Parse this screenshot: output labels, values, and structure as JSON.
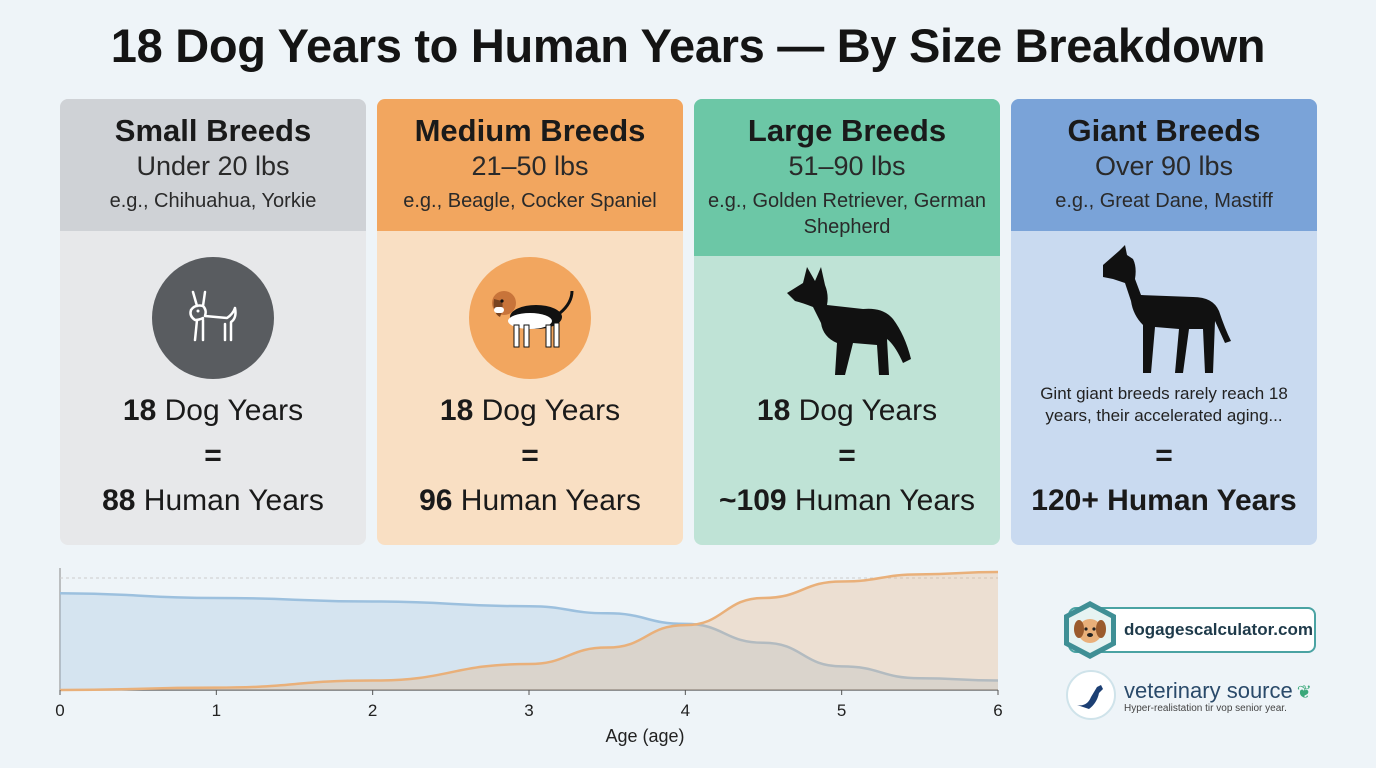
{
  "title": "18 Dog Years to Human Years — By Size Breakdown",
  "cards": [
    {
      "name": "Small Breeds",
      "weight": "Under 20 lbs",
      "examples": "e.g., Chihuahua, Yorkie",
      "dog_years_num": "18",
      "dog_years_label": " Dog Years",
      "equals": "=",
      "human_years_num": "88",
      "human_years_label": " Human Years",
      "icon": "chihuahua-outline-icon"
    },
    {
      "name": "Medium Breeds",
      "weight": "21–50 lbs",
      "examples": "e.g., Beagle, Cocker Spaniel",
      "dog_years_num": "18",
      "dog_years_label": " Dog Years",
      "equals": "=",
      "human_years_num": "96",
      "human_years_label": " Human Years",
      "icon": "beagle-icon"
    },
    {
      "name": "Large Breeds",
      "weight": "51–90 lbs",
      "examples": "e.g., Golden Retriever, German Shepherd",
      "dog_years_num": "18",
      "dog_years_label": " Dog Years",
      "equals": "=",
      "human_years_num": "~109",
      "human_years_label": " Human Years",
      "icon": "german-shepherd-silhouette-icon"
    },
    {
      "name": "Giant Breeds",
      "weight": "Over 90 lbs",
      "examples": "e.g., Great Dane, Mastiff",
      "note": "Gint giant breeds rarely reach 18 years, their accelerated aging...",
      "equals": "=",
      "human_years_text": "120+ Human Years",
      "icon": "great-dane-silhouette-icon"
    }
  ],
  "chart_data": {
    "type": "area",
    "xlabel": "Age (age)",
    "ylabel": "",
    "x": [
      0,
      1,
      2,
      3,
      4,
      5,
      6
    ],
    "xlim": [
      0,
      6
    ],
    "ylim": [
      0,
      1
    ],
    "grid": false,
    "series": [
      {
        "x": [
          0,
          1,
          2,
          3,
          3.5,
          4,
          4.5,
          5,
          5.5,
          6
        ],
        "values": [
          0.82,
          0.78,
          0.75,
          0.71,
          0.65,
          0.56,
          0.4,
          0.2,
          0.1,
          0.08
        ],
        "color": "#9cc0de"
      },
      {
        "x": [
          0,
          1,
          2,
          3,
          3.5,
          4,
          4.5,
          5,
          5.5,
          6
        ],
        "values": [
          0.0,
          0.02,
          0.08,
          0.22,
          0.36,
          0.55,
          0.78,
          0.92,
          0.98,
          1.0
        ],
        "color": "#e9b07a"
      }
    ]
  },
  "branding": {
    "site": "dogagescalculator.com",
    "vet": "veterinary source",
    "vet_sub": "Hyper-realistation tir vop senior year."
  },
  "colors": {
    "small": "#cfd2d6",
    "medium": "#f2a65f",
    "large": "#6cc7a6",
    "giant": "#7aa3d8"
  }
}
